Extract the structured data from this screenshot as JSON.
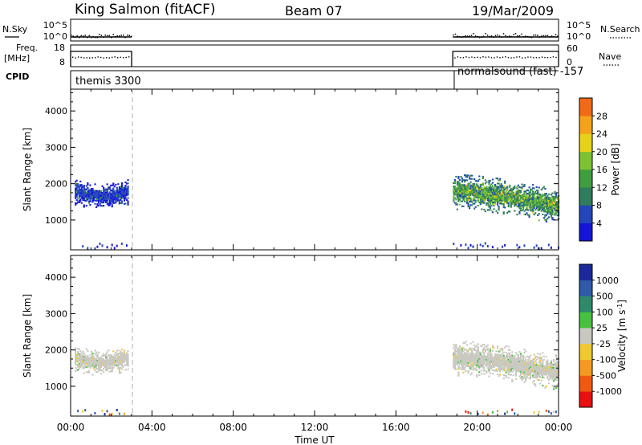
{
  "header": {
    "station": "King Salmon (fitACF)",
    "beam": "Beam 07",
    "date": "19/Mar/2009"
  },
  "panel_labels": {
    "nsky": "N.Sky",
    "nsearch": "N.Search",
    "freq_line1": "Freq.",
    "freq_line2": "[MHz]",
    "nave": "Nave",
    "cpid": "CPID"
  },
  "panel_ticks": {
    "nsky": [
      "10^5",
      "10^0"
    ],
    "nsearch": [
      "10^5",
      "10^0"
    ],
    "freq": [
      "18",
      "8"
    ],
    "nave": [
      "60",
      "0"
    ]
  },
  "cpid_labels": {
    "first": "themis 3300",
    "second": "normalsound (fast) -157"
  },
  "colors": {
    "scale": [
      "#1515d8",
      "#2347b8",
      "#2e7d5c",
      "#3f9e3f",
      "#7cc232",
      "#e6d21a",
      "#f4a21a",
      "#f06a18",
      "#e02318"
    ],
    "velocity_scale": [
      "#e81010",
      "#f05a10",
      "#f59a20",
      "#f0c830",
      "#c8c8c0",
      "#48c040",
      "#2e8a6a",
      "#2e5aa8",
      "#1a2a9a"
    ],
    "ground": "#c8c8c0",
    "dashed_line": "#cccccc"
  },
  "chart_data": [
    {
      "type": "heatmap",
      "title": "Power",
      "ylabel": "Slant Range [km]",
      "xlabel": "",
      "ylim": [
        180,
        4600
      ],
      "xlim": [
        0,
        24
      ],
      "yticks": [
        "1000",
        "2000",
        "3000",
        "4000"
      ],
      "colorbar": {
        "label": "Power [dB]",
        "ticks": [
          "4",
          "8",
          "12",
          "16",
          "20",
          "24",
          "28"
        ],
        "range": [
          0,
          32
        ]
      },
      "data_intervals": [
        {
          "start": 0.0,
          "end": 3.0,
          "cpid": "themis 3300"
        },
        {
          "start": 18.8,
          "end": 24.0,
          "cpid": "normalsound (fast) -157"
        }
      ],
      "echo_bands": [
        {
          "x_start": 0.2,
          "x_end": 2.8,
          "range_center_km": 1750,
          "half_width_km": 220,
          "value": 6
        },
        {
          "x_start": 18.8,
          "x_end": 24.0,
          "range_center_km": 1500,
          "half_width_km": 300,
          "value": 16
        }
      ]
    },
    {
      "type": "heatmap",
      "title": "Velocity",
      "ylabel": "Slant Range [km]",
      "xlabel": "Time UT",
      "ylim": [
        180,
        4600
      ],
      "xlim": [
        0,
        24
      ],
      "yticks": [
        "1000",
        "2000",
        "3000",
        "4000"
      ],
      "xticks": [
        "00:00",
        "04:00",
        "08:00",
        "12:00",
        "16:00",
        "20:00",
        "00:00"
      ],
      "colorbar": {
        "label": "Velocity [m s",
        "label_sup": "-1",
        "label_end": "]",
        "ticks": [
          "1000",
          "500",
          "100",
          "25",
          "-25",
          "-100",
          "-500",
          "-1000"
        ]
      },
      "echo_bands": [
        {
          "x_start": 0.2,
          "x_end": 2.8,
          "range_center_km": 1750,
          "half_width_km": 220,
          "value": 0
        },
        {
          "x_start": 18.8,
          "x_end": 24.0,
          "range_center_km": 1500,
          "half_width_km": 300,
          "value": 0
        }
      ]
    }
  ]
}
